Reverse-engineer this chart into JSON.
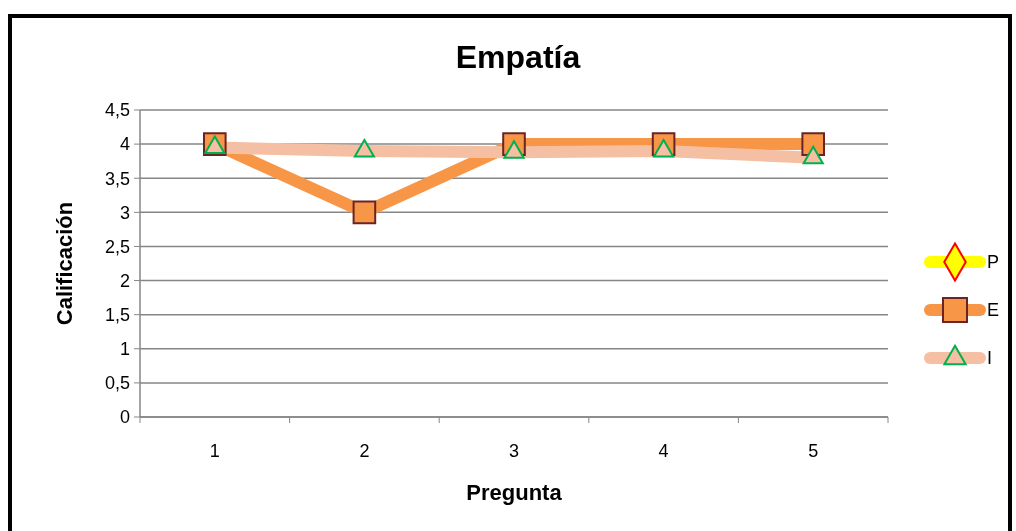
{
  "chart_data": {
    "type": "line",
    "title": "Empatía",
    "xlabel": "Pregunta",
    "ylabel": "Calificación",
    "categories": [
      "1",
      "2",
      "3",
      "4",
      "5"
    ],
    "series": [
      {
        "name": "P",
        "color": "#ffff00",
        "marker": "diamond",
        "values": [
          null,
          null,
          null,
          null,
          null
        ]
      },
      {
        "name": "E",
        "color": "#f79646",
        "marker": "square",
        "values": [
          4,
          3,
          4,
          4,
          4
        ]
      },
      {
        "name": "I",
        "color": "#f5bfa3",
        "marker": "triangle",
        "values": [
          3.95,
          3.9,
          3.88,
          3.9,
          3.8
        ]
      }
    ],
    "ylim": [
      0,
      4.5
    ],
    "yticks": [
      0,
      {
        "value": 0.5,
        "label": "0,5"
      },
      1,
      {
        "value": 1.5,
        "label": "1,5"
      },
      2,
      {
        "value": 2.5,
        "label": "2,5"
      },
      3,
      {
        "value": 3.5,
        "label": "3,5"
      },
      4,
      {
        "value": 4.5,
        "label": "4,5"
      }
    ],
    "grid": "y",
    "legend": "right"
  }
}
